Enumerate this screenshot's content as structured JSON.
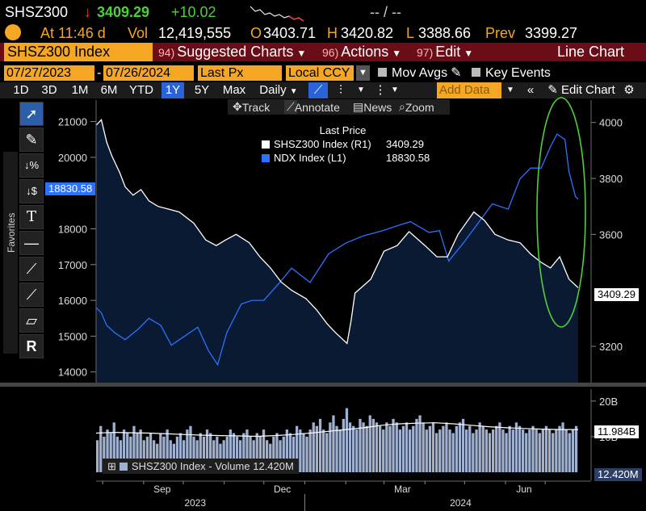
{
  "header": {
    "ticker": "SHSZ300",
    "direction_arrow": "↓",
    "last": "3409.29",
    "change": "+10.02",
    "range_text": "-- / --"
  },
  "stats": {
    "time_label": "At 11:46 d",
    "vol_label": "Vol",
    "vol_value": "12,419,555",
    "open_label": "O",
    "open_value": "3403.71",
    "high_label": "H",
    "high_value": "3420.82",
    "low_label": "L",
    "low_value": "3388.66",
    "prev_label": "Prev",
    "prev_value": "3399.27"
  },
  "function_bar": {
    "security": "SHSZ300 Index",
    "items": [
      {
        "num": "94)",
        "label": "Suggested Charts"
      },
      {
        "num": "96)",
        "label": "Actions"
      },
      {
        "num": "97)",
        "label": "Edit"
      }
    ],
    "chart_type": "Line Chart"
  },
  "inputs": {
    "start_date": "07/27/2023",
    "end_date": "07/26/2024",
    "price_field": "Last Px",
    "currency": "Local CCY",
    "mov_avgs": "Mov Avgs",
    "key_events": "Key Events"
  },
  "toolbar": {
    "periods": [
      "1D",
      "3D",
      "1M",
      "6M",
      "YTD",
      "1Y",
      "5Y",
      "Max"
    ],
    "selected_period": "1Y",
    "frequency": "Daily",
    "add_data_placeholder": "Add Data",
    "edit_chart": "Edit Chart"
  },
  "annotation_bar": {
    "track": "Track",
    "annotate": "Annotate",
    "news": "News",
    "zoom": "Zoom"
  },
  "side_panel": {
    "favorites": "Favorites"
  },
  "colors": {
    "amber": "#f5a623",
    "shsz_line": "#ffffff",
    "ndx_line": "#2a72ff",
    "area_fill": "#0b1a33",
    "highlight_ellipse": "#4cd137",
    "function_bar_bg": "#6a0d16"
  },
  "chart_data": {
    "type": "line",
    "legend": {
      "title": "Last Price",
      "entries": [
        {
          "name": "SHSZ300 Index",
          "axis": "(R1)",
          "value": "3409.29",
          "color": "#ffffff"
        },
        {
          "name": "NDX Index",
          "axis": "(L1)",
          "value": "18830.58",
          "color": "#2a72ff"
        }
      ]
    },
    "x_axis": {
      "range": [
        "2023-07-27",
        "2024-07-26"
      ],
      "month_labels": [
        "Sep",
        "Dec",
        "Mar",
        "Jun"
      ],
      "year_labels": [
        "2023",
        "2024"
      ]
    },
    "left_axis": {
      "series": "NDX Index",
      "ylim": [
        13700,
        21600
      ],
      "ticks": [
        14000,
        15000,
        16000,
        17000,
        18000,
        20000,
        21000
      ],
      "current_tag": "18830.58"
    },
    "right_axis": {
      "series": "SHSZ300 Index",
      "ylim": [
        3070,
        4080
      ],
      "ticks": [
        3200,
        3600,
        3800,
        4000
      ],
      "current_tag": "3409.29"
    },
    "series": [
      {
        "name": "SHSZ300 Index",
        "axis": "right",
        "x": [
          "2023-07-27",
          "2023-07-31",
          "2023-08-04",
          "2023-08-08",
          "2023-08-14",
          "2023-08-18",
          "2023-08-24",
          "2023-08-30",
          "2023-09-05",
          "2023-09-12",
          "2023-09-20",
          "2023-09-28",
          "2023-10-09",
          "2023-10-18",
          "2023-10-26",
          "2023-11-02",
          "2023-11-10",
          "2023-11-20",
          "2023-11-28",
          "2023-12-06",
          "2023-12-14",
          "2023-12-22",
          "2024-01-02",
          "2024-01-10",
          "2024-01-18",
          "2024-01-24",
          "2024-02-02",
          "2024-02-05",
          "2024-02-08",
          "2024-02-20",
          "2024-03-01",
          "2024-03-11",
          "2024-03-20",
          "2024-04-01",
          "2024-04-10",
          "2024-04-18",
          "2024-04-26",
          "2024-05-08",
          "2024-05-16",
          "2024-05-24",
          "2024-06-03",
          "2024-06-12",
          "2024-06-20",
          "2024-06-28",
          "2024-07-05",
          "2024-07-12",
          "2024-07-19",
          "2024-07-26"
        ],
        "values": [
          3990,
          4010,
          3930,
          3880,
          3820,
          3770,
          3740,
          3760,
          3720,
          3700,
          3690,
          3680,
          3640,
          3580,
          3560,
          3580,
          3600,
          3570,
          3520,
          3480,
          3430,
          3400,
          3370,
          3330,
          3280,
          3250,
          3210,
          3290,
          3390,
          3440,
          3540,
          3560,
          3610,
          3560,
          3520,
          3520,
          3600,
          3680,
          3650,
          3600,
          3580,
          3570,
          3530,
          3500,
          3480,
          3520,
          3440,
          3409.29
        ]
      },
      {
        "name": "NDX Index",
        "axis": "left",
        "x": [
          "2023-07-27",
          "2023-07-31",
          "2023-08-04",
          "2023-08-10",
          "2023-08-18",
          "2023-08-28",
          "2023-09-05",
          "2023-09-14",
          "2023-09-22",
          "2023-10-02",
          "2023-10-12",
          "2023-10-20",
          "2023-10-27",
          "2023-11-03",
          "2023-11-14",
          "2023-11-22",
          "2023-12-01",
          "2023-12-13",
          "2023-12-22",
          "2024-01-05",
          "2024-01-19",
          "2024-02-01",
          "2024-02-14",
          "2024-02-29",
          "2024-03-12",
          "2024-03-21",
          "2024-04-04",
          "2024-04-12",
          "2024-04-19",
          "2024-04-30",
          "2024-05-10",
          "2024-05-22",
          "2024-06-03",
          "2024-06-12",
          "2024-06-20",
          "2024-06-28",
          "2024-07-05",
          "2024-07-10",
          "2024-07-16",
          "2024-07-19",
          "2024-07-24",
          "2024-07-26"
        ],
        "values": [
          15800,
          15650,
          15300,
          15100,
          14900,
          15200,
          15500,
          15300,
          14750,
          15000,
          15250,
          14600,
          14200,
          15100,
          15900,
          16000,
          16000,
          16500,
          16900,
          16500,
          17300,
          17600,
          17800,
          17950,
          18100,
          18200,
          17900,
          17950,
          17100,
          17600,
          18100,
          18700,
          18550,
          19400,
          19700,
          19700,
          20300,
          20650,
          20500,
          19600,
          18900,
          18830.58
        ]
      }
    ],
    "volume": {
      "label": "SHSZ300 Index - Volume",
      "value_label": "12.420M",
      "ma_value": "11.984B",
      "ticks": [
        "20B",
        "10B"
      ],
      "ylim_billions": [
        0,
        22
      ],
      "values_billions": [
        9,
        13,
        10,
        12,
        11,
        14,
        10,
        9,
        12,
        11,
        10,
        13,
        11,
        12,
        9,
        10,
        11,
        9,
        8,
        11,
        10,
        12,
        9,
        8,
        10,
        11,
        9,
        12,
        13,
        10,
        9,
        11,
        10,
        12,
        11,
        9,
        10,
        8,
        9,
        10,
        12,
        11,
        10,
        9,
        11,
        12,
        10,
        9,
        11,
        10,
        12,
        9,
        8,
        10,
        11,
        9,
        10,
        12,
        11,
        10,
        13,
        12,
        11,
        10,
        12,
        14,
        13,
        15,
        12,
        11,
        14,
        16,
        13,
        12,
        15,
        18,
        14,
        13,
        12,
        15,
        14,
        13,
        16,
        15,
        14,
        13,
        12,
        14,
        13,
        15,
        14,
        12,
        13,
        14,
        12,
        13,
        15,
        16,
        14,
        12,
        13,
        14,
        11,
        12,
        13,
        14,
        12,
        11,
        13,
        14,
        15,
        12,
        13,
        11,
        12,
        14,
        13,
        12,
        11,
        12,
        13,
        14,
        12,
        11,
        13,
        12,
        14,
        13,
        12,
        11,
        12,
        13,
        12,
        11,
        12,
        13,
        12,
        11,
        12,
        13,
        14,
        12,
        11,
        12,
        13
      ],
      "ma_billions": [
        11,
        11.2,
        11.1,
        11,
        10.8,
        10.6,
        10.4,
        10.3,
        10.2,
        10.1,
        10.3,
        10.6,
        11,
        11.5,
        12,
        12.5,
        13.2,
        13.6,
        13.8,
        13.9,
        13.6,
        13.2,
        12.8,
        12.5,
        12.3,
        12.1,
        12,
        12
      ]
    }
  }
}
